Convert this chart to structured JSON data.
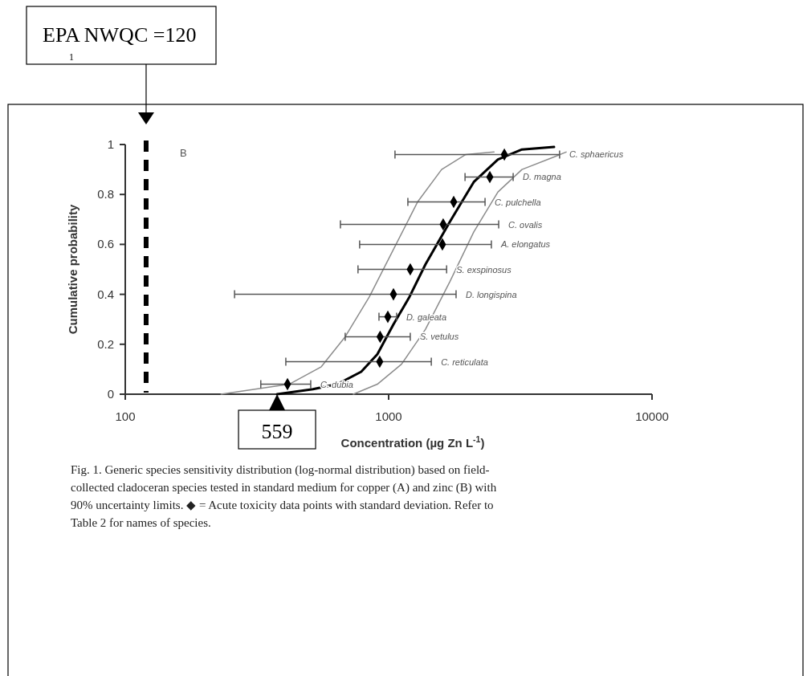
{
  "chart_data": {
    "type": "scatter",
    "xlabel": "Concentration (µg Zn L$^{-1}$)",
    "ylabel": "Cumulative probability",
    "log": "x",
    "xlim": [
      100,
      10000
    ],
    "xticks": [
      100,
      1000,
      10000
    ],
    "ylim": [
      0,
      1
    ],
    "yticks": [
      0,
      0.2,
      0.4,
      0.6,
      0.8,
      1
    ],
    "series": [
      {
        "type": "line",
        "color": "#8c8c8c",
        "x": [
          231,
          419,
          555,
          684,
          845,
          1043,
          1288,
          1589,
          1963,
          2512
        ],
        "values": [
          0.0,
          0.04,
          0.11,
          0.23,
          0.39,
          0.58,
          0.77,
          0.9,
          0.96,
          0.97
        ]
      },
      {
        "type": "line",
        "color": "#8c8c8c",
        "x": [
          734,
          906,
          1119,
          1380,
          1706,
          2105,
          2600,
          3207,
          4246,
          4720
        ],
        "values": [
          0.0,
          0.04,
          0.12,
          0.26,
          0.45,
          0.65,
          0.81,
          0.9,
          0.95,
          0.97
        ]
      },
      {
        "type": "line",
        "color": "#000000",
        "x": [
          377,
          516,
          638,
          787,
          906,
          1043,
          1200,
          1380,
          1706,
          2105,
          2600,
          3207,
          4246
        ],
        "values": [
          0.0,
          0.02,
          0.04,
          0.09,
          0.16,
          0.28,
          0.39,
          0.52,
          0.69,
          0.85,
          0.94,
          0.98,
          0.99
        ]
      },
      {
        "color": "#000000",
        "marker": "diamond",
        "x": [
          413,
          925,
          928,
          993,
          1043,
          1208,
          1600,
          1611,
          1766,
          2422,
          2750
        ],
        "values": [
          0.04,
          0.13,
          0.23,
          0.31,
          0.4,
          0.5,
          0.6,
          0.68,
          0.77,
          0.87,
          0.96
        ],
        "xerrors": [
          [
            327,
            506
          ],
          [
            407,
            1452
          ],
          [
            684,
            1208
          ],
          [
            919,
            1072
          ],
          [
            260,
            1803
          ],
          [
            765,
            1660
          ],
          [
            776,
            2455
          ],
          [
            656,
            2617
          ],
          [
            1183,
            2323
          ],
          [
            1950,
            2970
          ],
          [
            1057,
            4457
          ]
        ]
      }
    ],
    "ref_lines": [
      {
        "axis": "x",
        "value": 120,
        "label": "EPA NWQC =120",
        "color": "#000000",
        "line_style": "dashed"
      }
    ],
    "annotations": [
      "C. dubia",
      "C. reticulata",
      "S. vetulus",
      "D. galeata",
      "D. longispina",
      "S. exspinosus",
      "A. elongatus",
      "C. ovalis",
      "C. pulchella",
      "D. magna",
      "C. sphaericus",
      "559",
      "B",
      "1",
      "Fig. 1. Generic species sensitivity distribution (log-normal distribution) based on field-collected cladoceran species tested in standard medium for copper (A) and zinc (B) with 90% uncertainty limits. ◆ = Acute toxicity data points with standard deviation. Refer to Table 2 for names of species."
    ]
  }
}
